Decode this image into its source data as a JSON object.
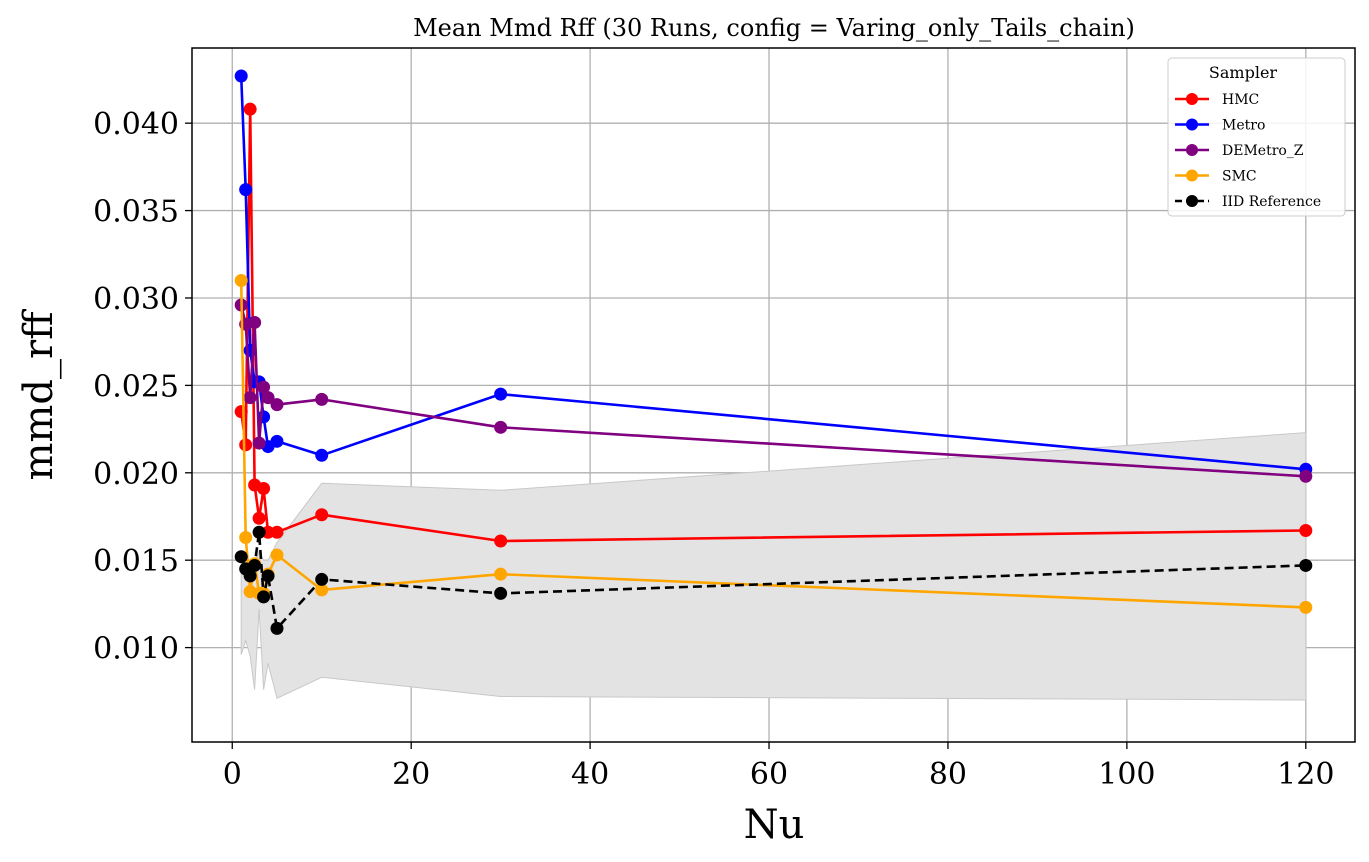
{
  "chart_data": {
    "type": "line",
    "title": "Mean Mmd Rff (30 Runs, config = Varing_only_Tails_chain)",
    "xlabel": "Nu",
    "ylabel": "mmd_rff",
    "xlim": [
      -4.5,
      125.5
    ],
    "ylim": [
      0.0046,
      0.0443
    ],
    "x_ticks": [
      0,
      20,
      40,
      60,
      80,
      100,
      120
    ],
    "y_ticks": [
      0.01,
      0.015,
      0.02,
      0.025,
      0.03,
      0.035,
      0.04
    ],
    "x_tick_labels": [
      "0",
      "20",
      "40",
      "60",
      "80",
      "100",
      "120"
    ],
    "y_tick_labels": [
      "0.010",
      "0.015",
      "0.020",
      "0.025",
      "0.030",
      "0.035",
      "0.040"
    ],
    "grid": true,
    "legend": {
      "title": "Sampler",
      "placement": "top-right"
    },
    "x": [
      1.0,
      1.5,
      2.0,
      2.5,
      3.0,
      3.5,
      4.0,
      5.0,
      10.0,
      30.0,
      120.0
    ],
    "series": [
      {
        "name": "HMC",
        "color": "#ff0000",
        "linestyle": "solid",
        "values": [
          0.0235,
          0.0216,
          0.0408,
          0.0193,
          0.0174,
          0.0191,
          0.0166,
          0.0166,
          0.0176,
          0.0161,
          0.0167
        ]
      },
      {
        "name": "Metro",
        "color": "#0000ff",
        "linestyle": "solid",
        "values": [
          0.0427,
          0.0362,
          0.027,
          0.0252,
          0.0252,
          0.0232,
          0.0215,
          0.0218,
          0.021,
          0.0245,
          0.0202
        ]
      },
      {
        "name": "DEMetro_Z",
        "color": "#800080",
        "linestyle": "solid",
        "values": [
          0.0296,
          0.0285,
          0.0243,
          0.0286,
          0.0217,
          0.0249,
          0.0243,
          0.0239,
          0.0242,
          0.0226,
          0.0198
        ]
      },
      {
        "name": "SMC",
        "color": "#ffa500",
        "linestyle": "solid",
        "values": [
          0.031,
          0.0163,
          0.0132,
          0.0148,
          0.0131,
          0.0131,
          0.0142,
          0.0153,
          0.0133,
          0.0142,
          0.0123
        ]
      },
      {
        "name": "IID Reference",
        "color": "#000000",
        "linestyle": "dashed",
        "values": [
          0.0152,
          0.0145,
          0.0141,
          0.0147,
          0.0166,
          0.0129,
          0.0141,
          0.0111,
          0.0139,
          0.0131,
          0.0147
        ]
      }
    ],
    "band": {
      "color": "#e3e3e3",
      "x": [
        1.0,
        1.5,
        2.0,
        2.5,
        3.0,
        3.5,
        4.0,
        5.0,
        10.0,
        30.0,
        120.0
      ],
      "lower": [
        0.0096,
        0.0104,
        0.0095,
        0.0076,
        0.0122,
        0.0076,
        0.0091,
        0.0071,
        0.0083,
        0.0072,
        0.007
      ],
      "upper": [
        0.0149,
        0.015,
        0.015,
        0.0148,
        0.0155,
        0.015,
        0.015,
        0.016,
        0.0194,
        0.019,
        0.0223
      ]
    }
  }
}
